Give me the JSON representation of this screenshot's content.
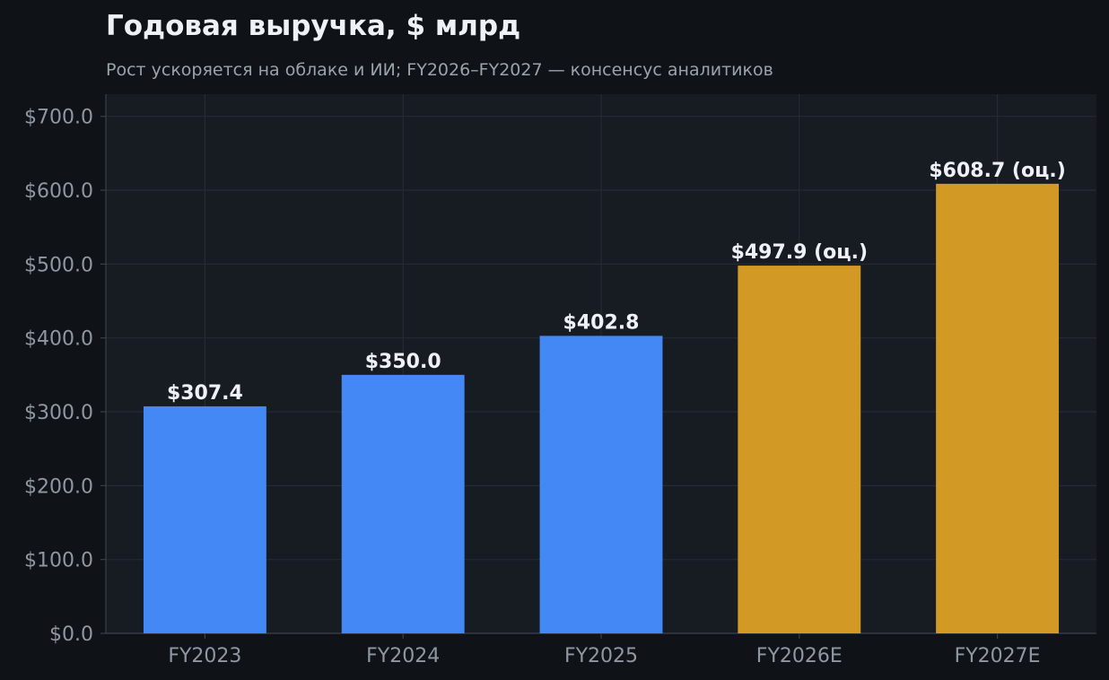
{
  "chart_data": {
    "type": "bar",
    "title": "Годовая выручка, $ млрд",
    "subtitle": "Рост ускоряется на облаке и ИИ; FY2026–FY2027 — консенсус аналитиков",
    "xlabel": "",
    "ylabel": "",
    "categories": [
      "FY2023",
      "FY2024",
      "FY2025",
      "FY2026E",
      "FY2027E"
    ],
    "values": [
      307.4,
      350.0,
      402.8,
      497.9,
      608.7
    ],
    "value_labels": [
      "$307.4",
      "$350.0",
      "$402.8",
      "$497.9 (оц.)",
      "$608.7 (оц.)"
    ],
    "estimate": [
      false,
      false,
      false,
      true,
      true
    ],
    "ylim": [
      0,
      730
    ],
    "yticks": [
      0,
      100,
      200,
      300,
      400,
      500,
      600,
      700
    ],
    "ytick_labels": [
      "$0.0",
      "$100.0",
      "$200.0",
      "$300.0",
      "$400.0",
      "$500.0",
      "$600.0",
      "$700.0"
    ],
    "grid": true,
    "colors": {
      "actual": "#4488f6",
      "estimate": "#d29a24",
      "background": "#0f1318",
      "plot_background": "#171b22",
      "grid": "#252a33",
      "axis": "#3a3f48"
    }
  }
}
